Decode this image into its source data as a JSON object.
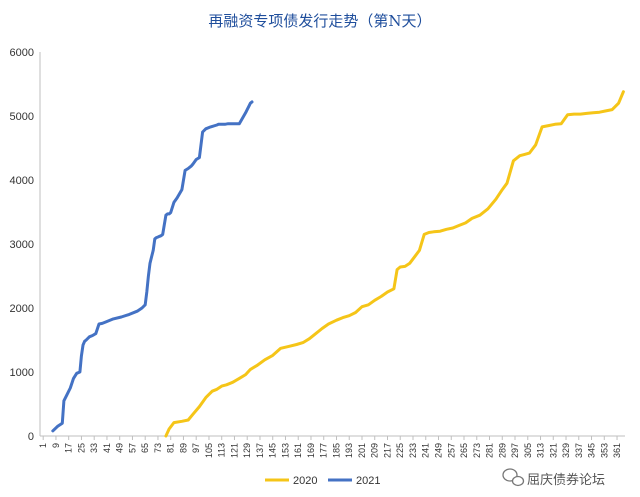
{
  "chart_data": {
    "type": "line",
    "title": "再融资专项债发行走势（第N天）",
    "xlabel": "",
    "ylabel": "",
    "xlim": [
      1,
      365
    ],
    "ylim": [
      0,
      6000
    ],
    "yticks": [
      0,
      1000,
      2000,
      3000,
      4000,
      5000,
      6000
    ],
    "xticks": [
      1,
      9,
      17,
      25,
      33,
      41,
      49,
      57,
      65,
      73,
      81,
      89,
      97,
      105,
      113,
      121,
      129,
      137,
      145,
      153,
      161,
      169,
      177,
      185,
      193,
      201,
      209,
      217,
      225,
      233,
      241,
      249,
      257,
      265,
      273,
      281,
      289,
      297,
      305,
      313,
      321,
      329,
      337,
      345,
      353,
      361
    ],
    "grid": false,
    "legend_position": "bottom",
    "series": [
      {
        "name": "2020",
        "color": "#f5c518",
        "x": [
          78,
          80,
          83,
          88,
          92,
          95,
          99,
          103,
          107,
          110,
          113,
          116,
          120,
          124,
          128,
          131,
          135,
          140,
          145,
          150,
          155,
          160,
          164,
          168,
          172,
          176,
          180,
          185,
          189,
          193,
          197,
          201,
          205,
          209,
          213,
          217,
          221,
          223,
          225,
          228,
          231,
          234,
          237,
          240,
          243,
          246,
          250,
          254,
          258,
          262,
          266,
          270,
          275,
          280,
          285,
          289,
          292,
          296,
          300,
          303,
          306,
          310,
          314,
          318,
          322,
          326,
          330,
          334,
          338,
          342,
          346,
          350,
          354,
          358,
          362,
          365
        ],
        "values": [
          0,
          110,
          210,
          230,
          250,
          340,
          460,
          600,
          700,
          730,
          780,
          800,
          840,
          900,
          960,
          1040,
          1100,
          1190,
          1260,
          1370,
          1400,
          1430,
          1460,
          1520,
          1600,
          1680,
          1750,
          1810,
          1850,
          1880,
          1930,
          2020,
          2050,
          2120,
          2180,
          2250,
          2300,
          2600,
          2640,
          2650,
          2700,
          2800,
          2900,
          3150,
          3180,
          3190,
          3200,
          3230,
          3250,
          3290,
          3330,
          3400,
          3450,
          3550,
          3700,
          3850,
          3950,
          4300,
          4380,
          4400,
          4420,
          4550,
          4830,
          4850,
          4870,
          4880,
          5020,
          5030,
          5030,
          5040,
          5050,
          5060,
          5080,
          5100,
          5200,
          5380
        ]
      },
      {
        "name": "2021",
        "color": "#4472c4",
        "x": [
          7,
          10,
          13,
          14,
          16,
          18,
          20,
          22,
          24,
          25,
          26,
          27,
          28,
          30,
          32,
          34,
          36,
          38,
          40,
          45,
          50,
          55,
          60,
          63,
          65,
          66,
          67,
          68,
          69,
          70,
          71,
          72,
          73,
          74,
          75,
          76,
          77,
          78,
          79,
          80,
          81,
          83,
          85,
          88,
          90,
          92,
          93,
          94,
          95,
          97,
          99,
          101,
          103,
          106,
          110,
          111,
          112,
          113,
          115,
          117,
          120,
          124,
          128,
          129,
          130,
          131,
          132
        ],
        "values": [
          80,
          150,
          200,
          550,
          650,
          750,
          900,
          980,
          1000,
          1250,
          1420,
          1480,
          1500,
          1550,
          1570,
          1600,
          1750,
          1760,
          1780,
          1830,
          1860,
          1900,
          1950,
          2000,
          2050,
          2250,
          2500,
          2700,
          2800,
          2900,
          3080,
          3100,
          3110,
          3120,
          3130,
          3150,
          3300,
          3450,
          3470,
          3470,
          3490,
          3650,
          3720,
          3850,
          4150,
          4180,
          4200,
          4220,
          4250,
          4320,
          4350,
          4750,
          4800,
          4830,
          4860,
          4870,
          4870,
          4870,
          4870,
          4880,
          4880,
          4880,
          5050,
          5100,
          5150,
          5200,
          5220
        ]
      }
    ]
  },
  "watermark": {
    "text": "屈庆债券论坛",
    "icon": "wechat-icon"
  }
}
